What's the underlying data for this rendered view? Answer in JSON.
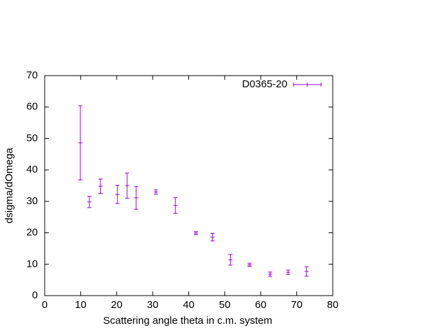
{
  "chart_data": {
    "type": "errorbar",
    "xlabel": "Scattering angle theta in c.m. system",
    "ylabel": "dsigma/dOmega",
    "xlim": [
      0,
      80
    ],
    "ylim": [
      0,
      70
    ],
    "xticks": [
      0,
      10,
      20,
      30,
      40,
      50,
      60,
      70,
      80
    ],
    "yticks": [
      0,
      10,
      20,
      30,
      40,
      50,
      60,
      70
    ],
    "grid": false,
    "legend": "top-right",
    "series": [
      {
        "name": "D0365-20",
        "color": "#9400d3",
        "x": [
          9.9,
          12.4,
          15.5,
          20.2,
          22.9,
          25.4,
          30.9,
          36.3,
          42.0,
          46.6,
          51.6,
          56.9,
          62.6,
          67.6,
          72.7
        ],
        "values": [
          48.6,
          29.8,
          34.8,
          32.2,
          35.0,
          31.1,
          33.0,
          28.7,
          19.9,
          18.6,
          11.4,
          9.8,
          6.8,
          7.4,
          7.7
        ],
        "errors": [
          11.8,
          1.8,
          2.3,
          2.9,
          4.0,
          3.6,
          0.7,
          2.5,
          0.5,
          1.2,
          1.7,
          0.5,
          0.7,
          0.7,
          1.5
        ]
      }
    ]
  }
}
